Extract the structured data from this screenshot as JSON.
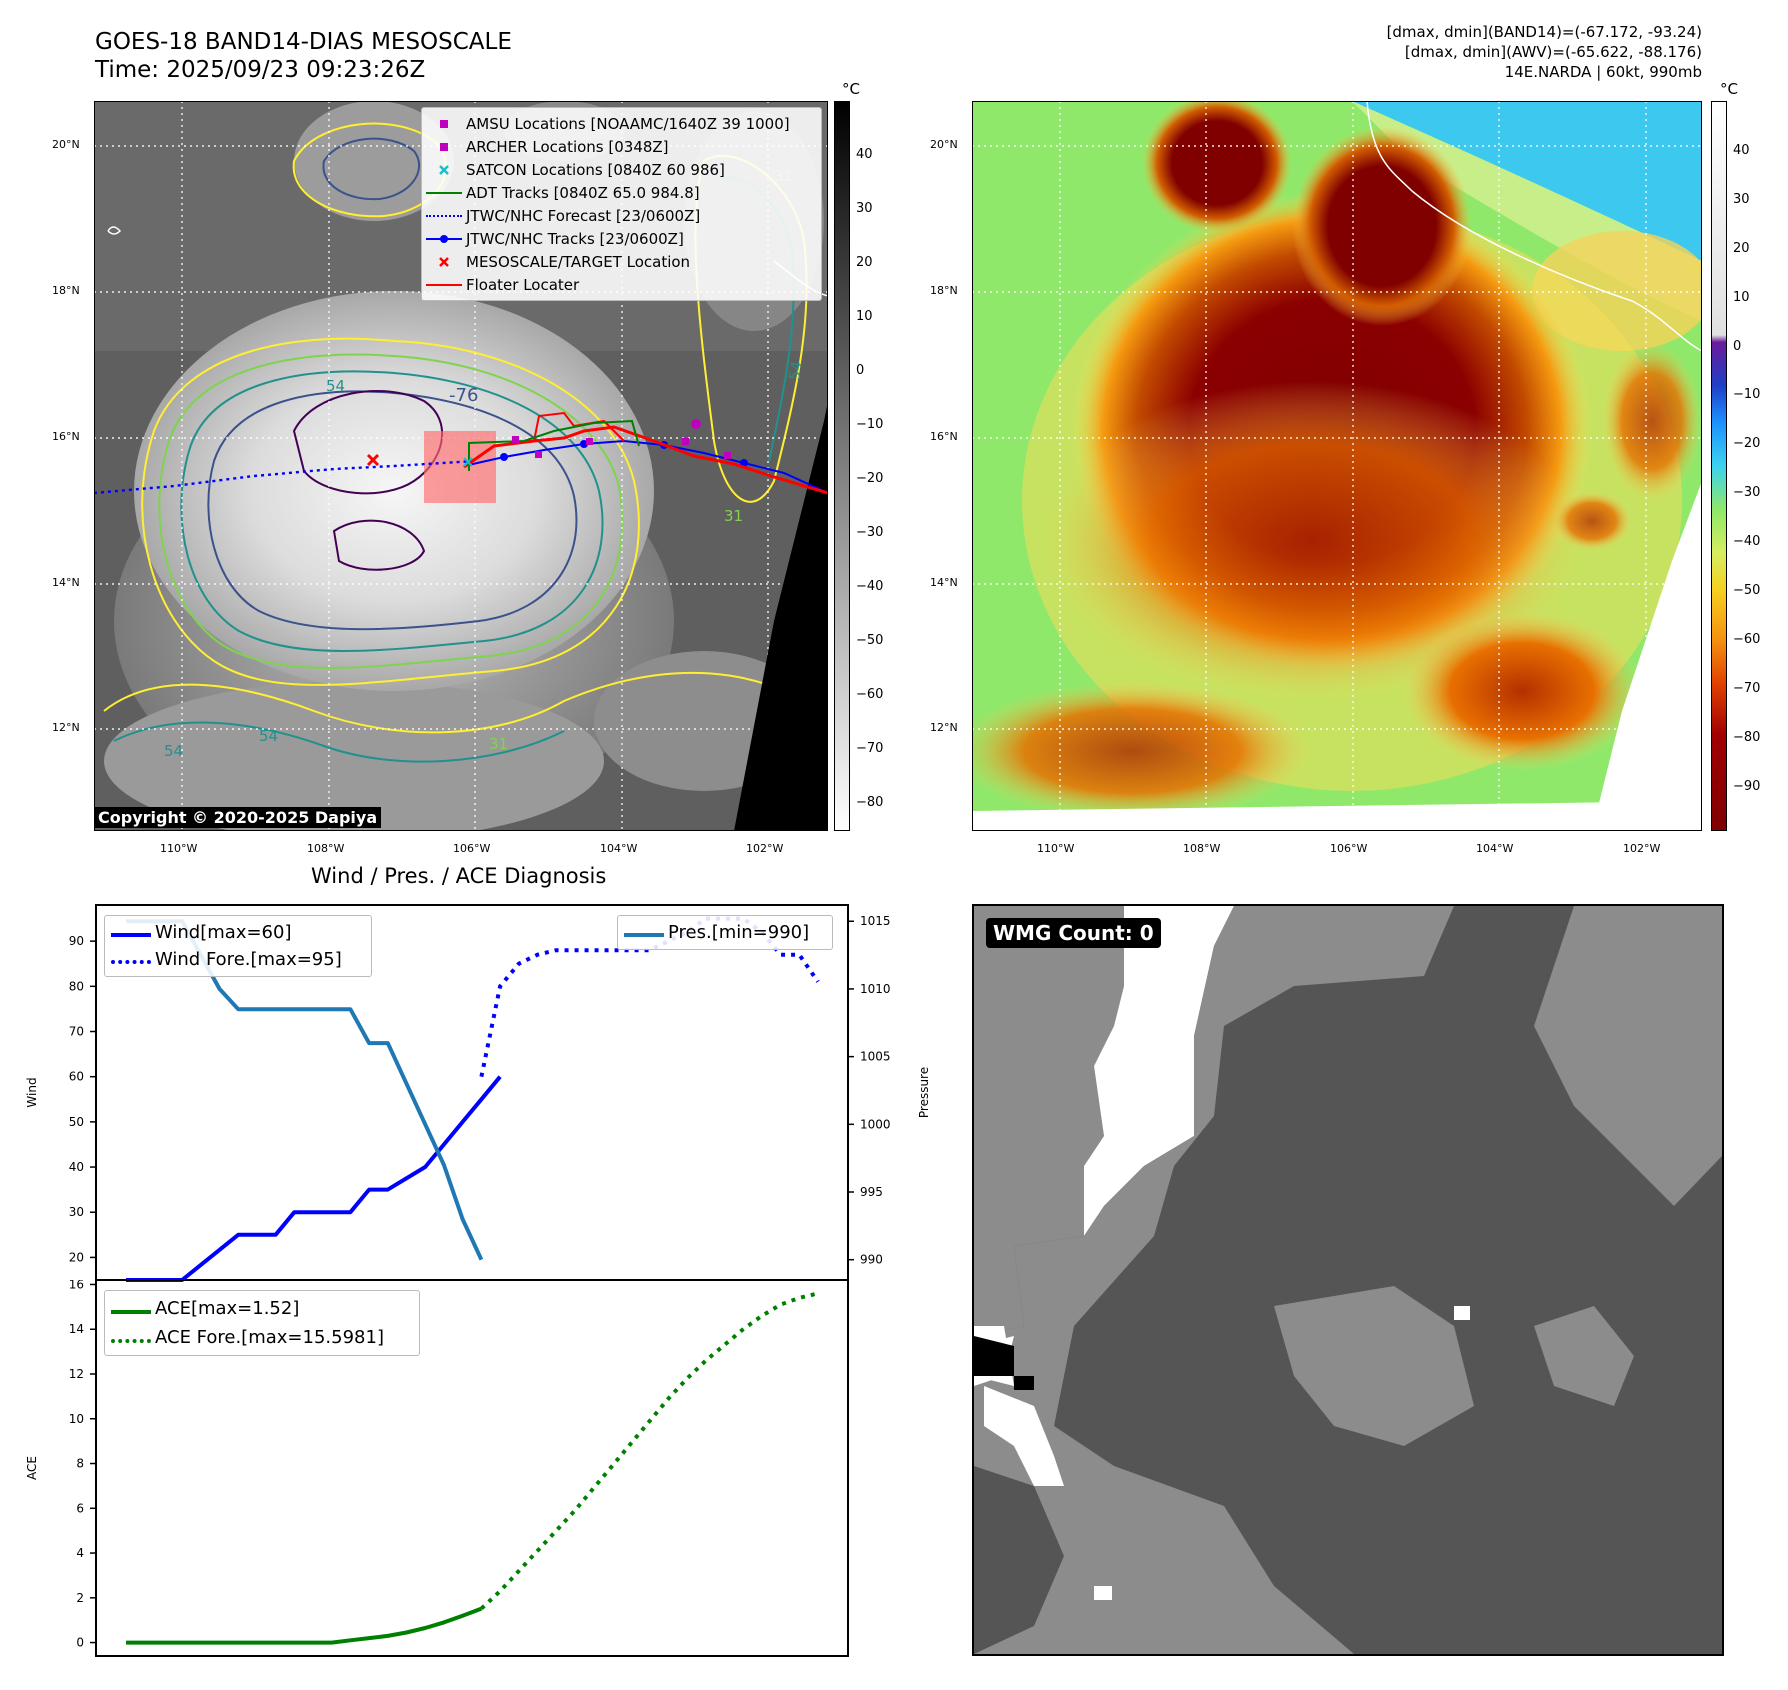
{
  "top_left": {
    "title_line1": "GOES-18 BAND14-DIAS MESOSCALE",
    "title_line2": "Time: 2025/09/23 09:23:26Z",
    "copyright": "Copyright © 2020-2025 Dapiya",
    "colorbar_unit": "°C",
    "colorbar_ticks": [
      "40",
      "30",
      "20",
      "10",
      "0",
      "−10",
      "−20",
      "−30",
      "−40",
      "−50",
      "−60",
      "−70",
      "−80"
    ],
    "lat_labels": [
      "20°N",
      "18°N",
      "16°N",
      "14°N",
      "12°N"
    ],
    "lon_labels": [
      "110°W",
      "108°W",
      "106°W",
      "104°W",
      "102°W"
    ],
    "contour_labels": [
      "-76",
      "54",
      "54",
      "54",
      "31",
      "31",
      "54",
      "31"
    ],
    "legend": [
      {
        "label": "AMSU Locations [NOAAMC/1640Z 39 1000]",
        "icon": "magenta-square",
        "color": "#bf00bf"
      },
      {
        "label": "ARCHER Locations [0348Z]",
        "icon": "magenta-square",
        "color": "#bf00bf"
      },
      {
        "label": "SATCON Locations [0840Z 60 986]",
        "icon": "cyan-x",
        "color": "#17becf"
      },
      {
        "label": "ADT Tracks [0840Z 65.0 984.8]",
        "icon": "green-line",
        "color": "#008000"
      },
      {
        "label": "JTWC/NHC Forecast [23/0600Z]",
        "icon": "blue-dotted-line",
        "color": "#0000ff"
      },
      {
        "label": "JTWC/NHC Tracks [23/0600Z]",
        "icon": "blue-line-dot",
        "color": "#0000ff"
      },
      {
        "label": "MESOSCALE/TARGET Location",
        "icon": "red-x",
        "color": "#ff0000"
      },
      {
        "label": "Floater Locater",
        "icon": "red-line",
        "color": "#ff0000"
      }
    ]
  },
  "top_right": {
    "stats_line1": "[dmax, dmin](BAND14)=(-67.172, -93.24)",
    "stats_line2": "[dmax, dmin](AWV)=(-65.622, -88.176)",
    "stats_line3": "14E.NARDA | 60kt, 990mb",
    "colorbar_unit": "°C",
    "colorbar_ticks": [
      "40",
      "30",
      "20",
      "10",
      "0",
      "−10",
      "−20",
      "−30",
      "−40",
      "−50",
      "−60",
      "−70",
      "−80",
      "−90"
    ],
    "lat_labels": [
      "20°N",
      "18°N",
      "16°N",
      "14°N",
      "12°N"
    ],
    "lon_labels": [
      "110°W",
      "108°W",
      "106°W",
      "104°W",
      "102°W"
    ]
  },
  "bottom_right": {
    "badge": "WMG Count: 0"
  },
  "chart_data": [
    {
      "type": "line",
      "title": "Wind / Pres. / ACE Diagnosis",
      "ylabel": "Wind",
      "ylabel_right": "Pressure",
      "ylim": [
        15,
        98
      ],
      "ylim_right": [
        988.5,
        1016.2
      ],
      "y_ticks": [
        20,
        30,
        40,
        50,
        60,
        70,
        80,
        90
      ],
      "y_ticks_right": [
        990,
        995,
        1000,
        1005,
        1010,
        1015
      ],
      "x_index_range": [
        0,
        37
      ],
      "series": [
        {
          "name": "Wind[max=60]",
          "style": "solid",
          "color": "#0000ff",
          "axis": "left",
          "x": [
            0,
            3,
            6,
            8,
            9,
            12,
            13,
            14,
            16,
            17,
            18,
            19,
            20,
            21,
            22,
            23,
            24
          ],
          "y": [
            15,
            15,
            25,
            25,
            30,
            30,
            35,
            35,
            40,
            45,
            50,
            55,
            60,
            null,
            null,
            null,
            null
          ]
        },
        {
          "name": "Wind Fore.[max=95]",
          "style": "dotted",
          "color": "#0000ff",
          "axis": "left",
          "x": [
            19,
            20,
            21,
            22,
            23,
            24,
            25,
            26,
            27,
            28,
            29,
            30,
            31,
            32,
            33,
            34,
            35,
            36,
            37
          ],
          "y": [
            60,
            80,
            85,
            87,
            88,
            88,
            88,
            88,
            88,
            88,
            90,
            92,
            95,
            95,
            95,
            92,
            87,
            87,
            81
          ]
        },
        {
          "name": "Pres.[min=990]",
          "style": "solid",
          "color": "#1f77b4",
          "axis": "right",
          "x": [
            0,
            3,
            5,
            6,
            7,
            8,
            9,
            10,
            11,
            12,
            13,
            14,
            15,
            16,
            17,
            18,
            19
          ],
          "y": [
            1015,
            1015,
            1010,
            1008.5,
            1008.5,
            1008.5,
            1008.5,
            1008.5,
            1008.5,
            1008.5,
            1006,
            1006,
            1003,
            1000,
            997,
            993,
            990
          ]
        }
      ]
    },
    {
      "type": "line",
      "ylabel": "ACE",
      "ylim": [
        -0.6,
        16.2
      ],
      "y_ticks": [
        0,
        2,
        4,
        6,
        8,
        10,
        12,
        14,
        16
      ],
      "x_index_range": [
        0,
        37
      ],
      "series": [
        {
          "name": "ACE[max=1.52]",
          "style": "solid",
          "color": "#008000",
          "x": [
            0,
            2,
            4,
            6,
            8,
            10,
            11,
            12,
            13,
            14,
            15,
            16,
            17,
            18,
            19
          ],
          "y": [
            0,
            0,
            0,
            0,
            0,
            0,
            0,
            0.1,
            0.2,
            0.3,
            0.45,
            0.65,
            0.9,
            1.2,
            1.52
          ]
        },
        {
          "name": "ACE Fore.[max=15.5981]",
          "style": "dotted",
          "color": "#008000",
          "x": [
            19,
            20,
            21,
            22,
            23,
            24,
            25,
            26,
            27,
            28,
            29,
            30,
            31,
            32,
            33,
            34,
            35,
            36,
            37
          ],
          "y": [
            1.52,
            2.3,
            3.2,
            4.1,
            5.0,
            5.9,
            6.9,
            7.9,
            8.9,
            9.9,
            10.9,
            11.8,
            12.6,
            13.3,
            14.0,
            14.6,
            15.1,
            15.4,
            15.6
          ]
        }
      ]
    }
  ]
}
